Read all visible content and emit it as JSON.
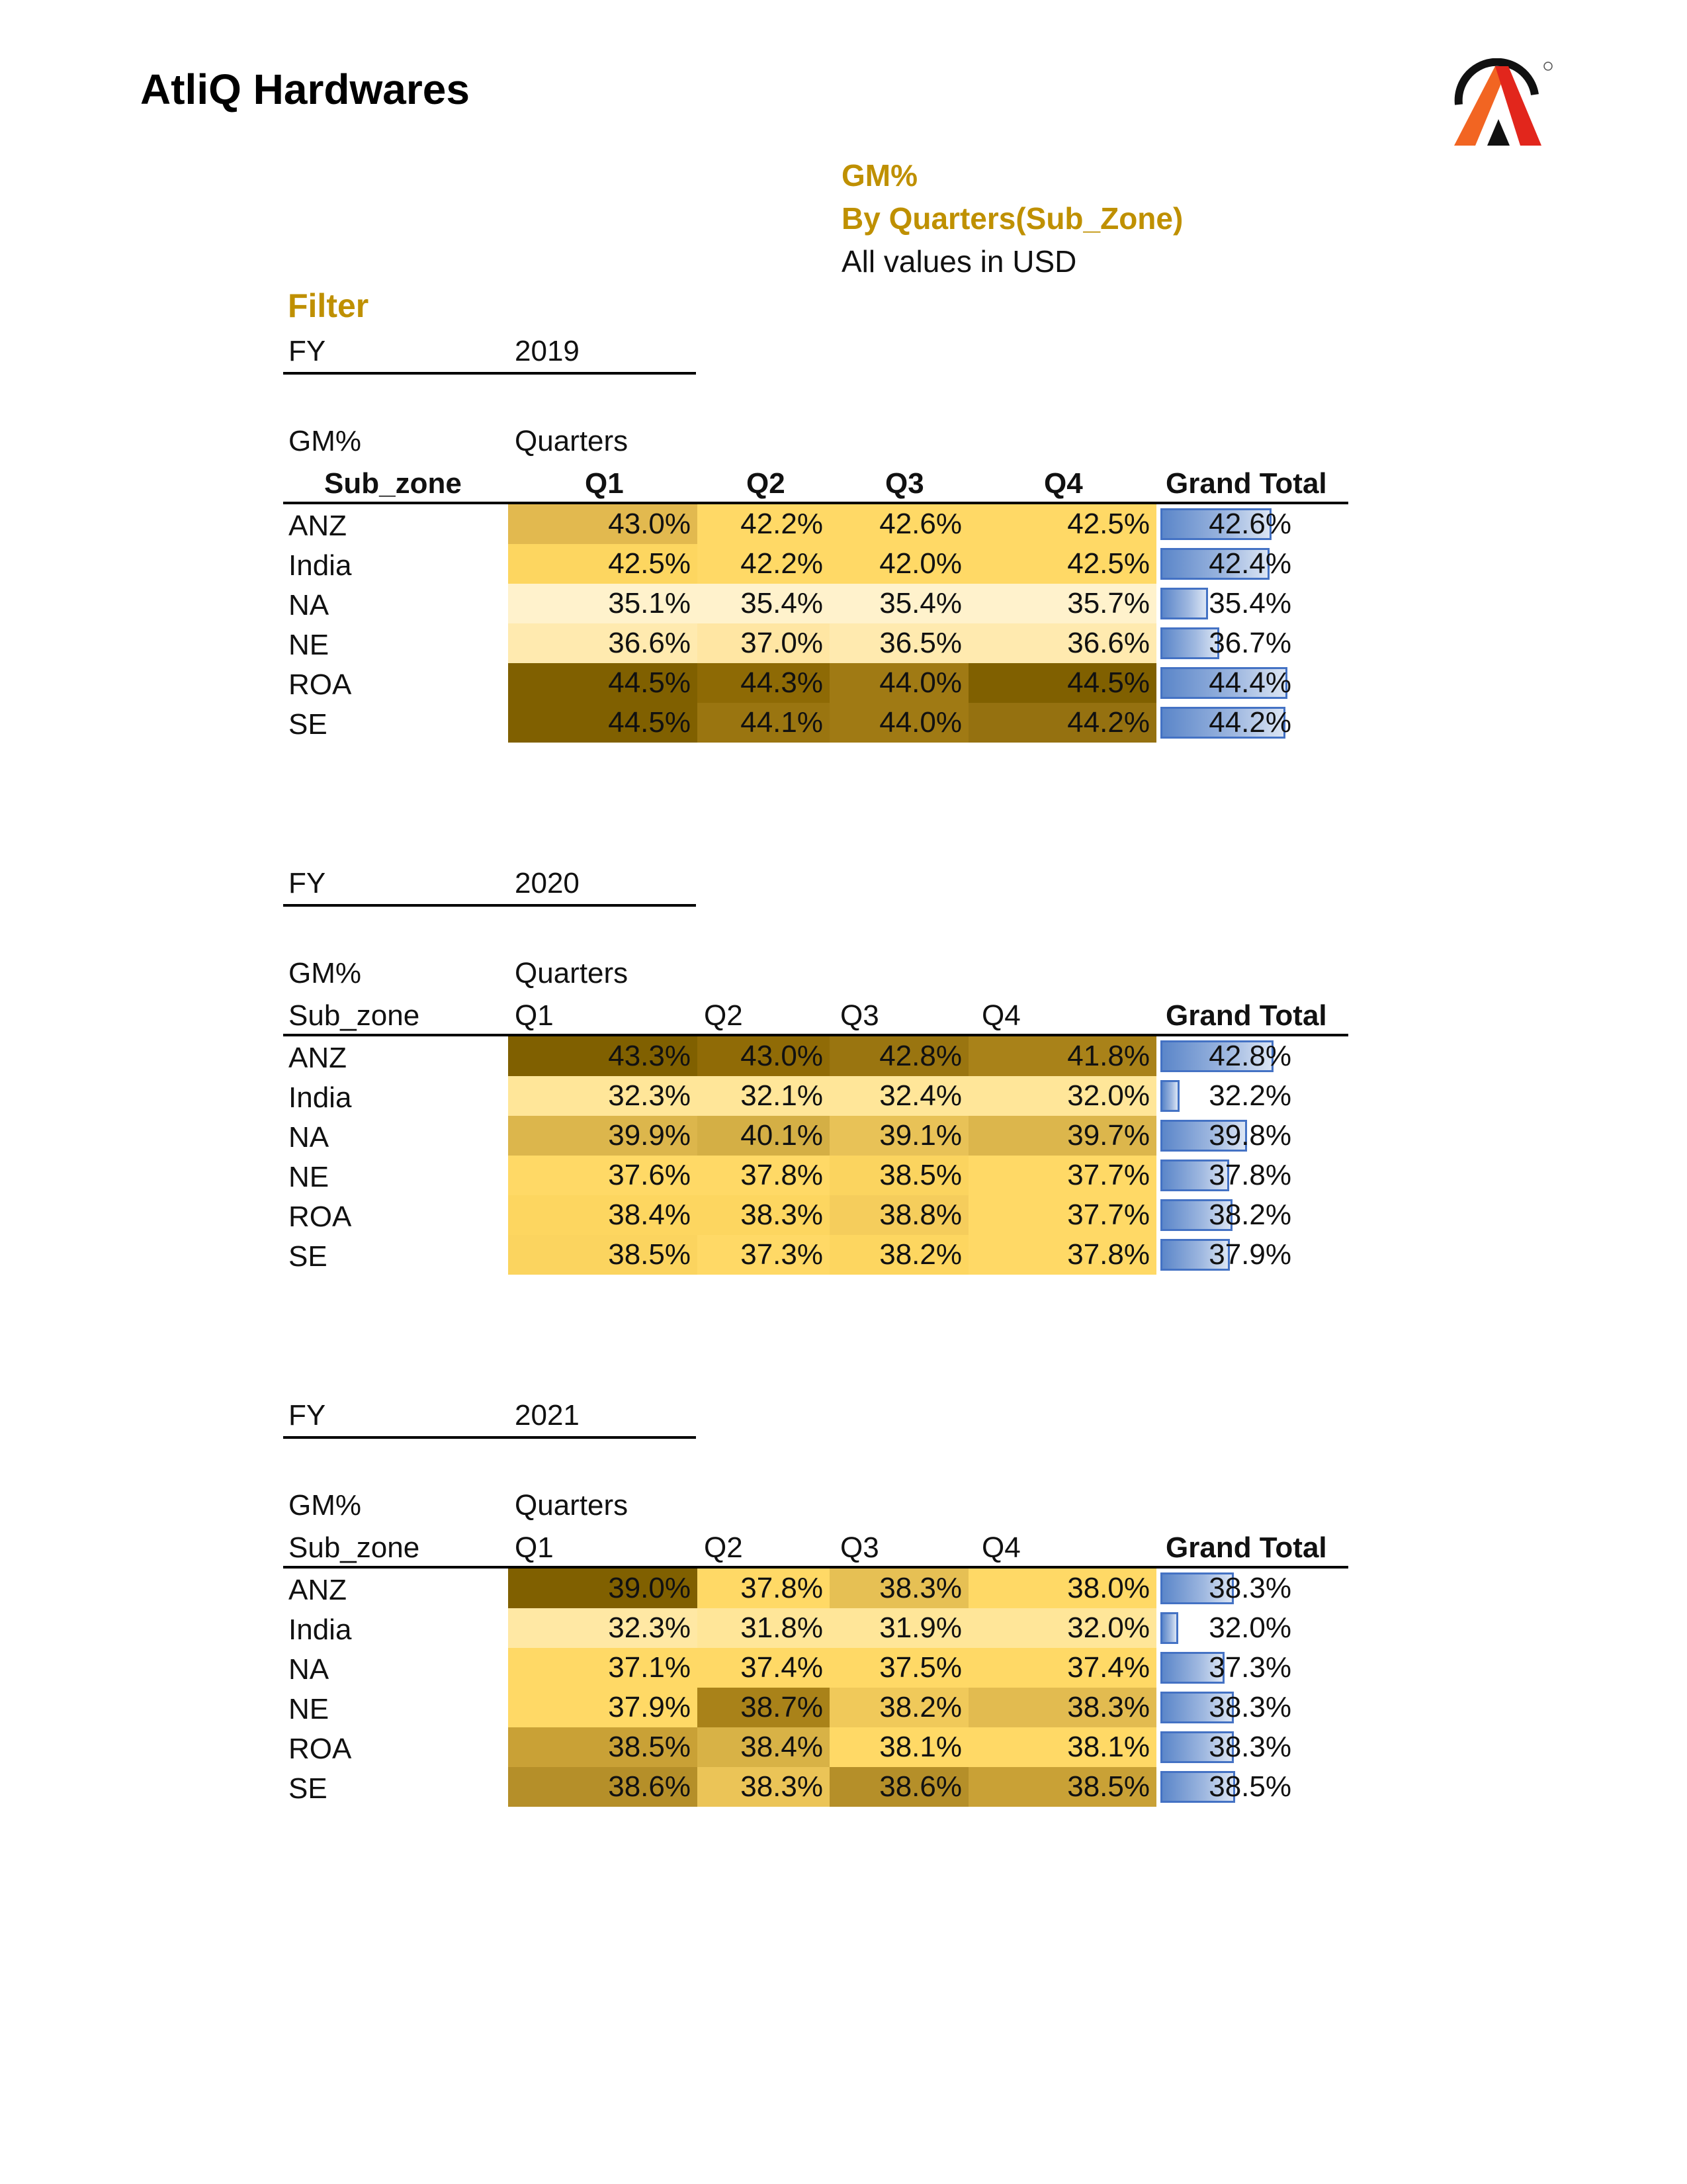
{
  "header": {
    "company": "AtliQ Hardwares",
    "logo_icon": "atliq-logo-icon",
    "title_line1": "GM%",
    "title_line2": "By Quarters(Sub_Zone)",
    "title_line3": "All values in USD",
    "filter_label": "Filter"
  },
  "colors": {
    "accent": "#bf9000",
    "bar": "#4472c4"
  },
  "tables": [
    {
      "fy_label": "FY",
      "fy_value": "2019",
      "measure": "GM%",
      "columns_label": "Quarters",
      "rows_label": "Sub_zone",
      "bold_header": true,
      "quarters": [
        "Q1",
        "Q2",
        "Q3",
        "Q4"
      ],
      "grand_total_label": "Grand Total",
      "rows": [
        {
          "name": "ANZ",
          "values": [
            "43.0%",
            "42.2%",
            "42.6%",
            "42.5%"
          ],
          "total": "42.6%",
          "colors": [
            "#e2b94f",
            "#ffd966",
            "#ffd966",
            "#ffd966"
          ]
        },
        {
          "name": "India",
          "values": [
            "42.5%",
            "42.2%",
            "42.0%",
            "42.5%"
          ],
          "total": "42.4%",
          "colors": [
            "#fdd660",
            "#ffd966",
            "#ffd966",
            "#ffd966"
          ]
        },
        {
          "name": "NA",
          "values": [
            "35.1%",
            "35.4%",
            "35.4%",
            "35.7%"
          ],
          "total": "35.4%",
          "colors": [
            "#fff2cc",
            "#fff2cc",
            "#fff2cc",
            "#fff2cc"
          ]
        },
        {
          "name": "NE",
          "values": [
            "36.6%",
            "37.0%",
            "36.5%",
            "36.6%"
          ],
          "total": "36.7%",
          "colors": [
            "#ffeaaf",
            "#ffe6a3",
            "#ffeaaf",
            "#ffeaaf"
          ]
        },
        {
          "name": "ROA",
          "values": [
            "44.5%",
            "44.3%",
            "44.0%",
            "44.5%"
          ],
          "total": "44.4%",
          "colors": [
            "#806000",
            "#8e6a05",
            "#a07a14",
            "#806000"
          ]
        },
        {
          "name": "SE",
          "values": [
            "44.5%",
            "44.1%",
            "44.0%",
            "44.2%"
          ],
          "total": "44.2%",
          "colors": [
            "#806000",
            "#9a7510",
            "#a07a14",
            "#957110"
          ]
        }
      ]
    },
    {
      "fy_label": "FY",
      "fy_value": "2020",
      "measure": "GM%",
      "columns_label": "Quarters",
      "rows_label": "Sub_zone",
      "bold_header": false,
      "quarters": [
        "Q1",
        "Q2",
        "Q3",
        "Q4"
      ],
      "grand_total_label": "Grand Total",
      "rows": [
        {
          "name": "ANZ",
          "values": [
            "43.3%",
            "43.0%",
            "42.8%",
            "41.8%"
          ],
          "total": "42.8%",
          "colors": [
            "#806000",
            "#906b06",
            "#9a7510",
            "#a98219"
          ]
        },
        {
          "name": "India",
          "values": [
            "32.3%",
            "32.1%",
            "32.4%",
            "32.0%"
          ],
          "total": "32.2%",
          "colors": [
            "#ffe699",
            "#ffe699",
            "#ffe699",
            "#ffe699"
          ]
        },
        {
          "name": "NA",
          "values": [
            "39.9%",
            "40.1%",
            "39.1%",
            "39.7%"
          ],
          "total": "39.8%",
          "colors": [
            "#dcb64c",
            "#d4af45",
            "#e8c257",
            "#dcb64c"
          ]
        },
        {
          "name": "NE",
          "values": [
            "37.6%",
            "37.8%",
            "38.5%",
            "37.7%"
          ],
          "total": "37.8%",
          "colors": [
            "#ffd966",
            "#ffd966",
            "#fbd45f",
            "#ffd966"
          ]
        },
        {
          "name": "ROA",
          "values": [
            "38.4%",
            "38.3%",
            "38.8%",
            "37.7%"
          ],
          "total": "38.2%",
          "colors": [
            "#fdd660",
            "#fdd660",
            "#f5cd5c",
            "#ffd966"
          ]
        },
        {
          "name": "SE",
          "values": [
            "38.5%",
            "37.3%",
            "38.2%",
            "37.8%"
          ],
          "total": "37.9%",
          "colors": [
            "#fbd45f",
            "#ffd966",
            "#fdd660",
            "#ffd966"
          ]
        }
      ]
    },
    {
      "fy_label": "FY",
      "fy_value": "2021",
      "measure": "GM%",
      "columns_label": "Quarters",
      "rows_label": "Sub_zone",
      "bold_header": false,
      "quarters": [
        "Q1",
        "Q2",
        "Q3",
        "Q4"
      ],
      "grand_total_label": "Grand Total",
      "rows": [
        {
          "name": "ANZ",
          "values": [
            "39.0%",
            "37.8%",
            "38.3%",
            "38.0%"
          ],
          "total": "38.3%",
          "colors": [
            "#806000",
            "#ffd966",
            "#e6c054",
            "#ffd966"
          ]
        },
        {
          "name": "India",
          "values": [
            "32.3%",
            "31.8%",
            "31.9%",
            "32.0%"
          ],
          "total": "32.0%",
          "colors": [
            "#ffe8a4",
            "#ffe699",
            "#ffe699",
            "#ffe699"
          ]
        },
        {
          "name": "NA",
          "values": [
            "37.1%",
            "37.4%",
            "37.5%",
            "37.4%"
          ],
          "total": "37.3%",
          "colors": [
            "#ffd966",
            "#ffd966",
            "#ffd966",
            "#ffd966"
          ]
        },
        {
          "name": "NE",
          "values": [
            "37.9%",
            "38.7%",
            "38.2%",
            "38.3%"
          ],
          "total": "38.3%",
          "colors": [
            "#ffd966",
            "#a98219",
            "#f0c95a",
            "#e2bb50"
          ]
        },
        {
          "name": "ROA",
          "values": [
            "38.5%",
            "38.4%",
            "38.1%",
            "38.1%"
          ],
          "total": "38.3%",
          "colors": [
            "#c9a136",
            "#d8b246",
            "#ffd966",
            "#ffd966"
          ]
        },
        {
          "name": "SE",
          "values": [
            "38.6%",
            "38.3%",
            "38.6%",
            "38.5%"
          ],
          "total": "38.5%",
          "colors": [
            "#b58f29",
            "#ebc457",
            "#b58f29",
            "#c9a136"
          ]
        }
      ]
    }
  ]
}
